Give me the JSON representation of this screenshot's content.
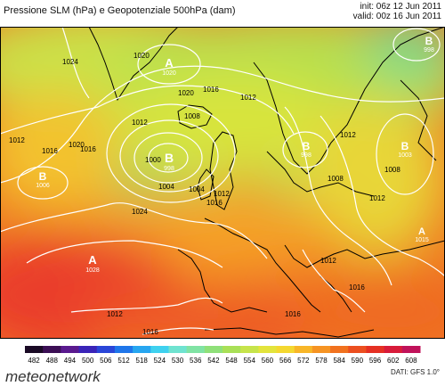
{
  "header": {
    "title": "Pressione SLM (hPa) e Geopotenziale 500hPa (dam)",
    "init": "init: 06z 12 Jun 2011",
    "valid": "valid: 00z 16 Jun 2011"
  },
  "map": {
    "pressure_centers": [
      {
        "letter": "A",
        "value": "1020"
      },
      {
        "letter": "B",
        "value": "998"
      },
      {
        "letter": "B",
        "value": "1006"
      },
      {
        "letter": "A",
        "value": "1028"
      },
      {
        "letter": "B",
        "value": "998"
      },
      {
        "letter": "B",
        "value": "1003"
      },
      {
        "letter": "A",
        "value": "1015"
      },
      {
        "letter": "B",
        "value": "998"
      }
    ],
    "isobar_labels": [
      "1020",
      "1024",
      "1020",
      "1016",
      "1012",
      "1008",
      "1004",
      "1000",
      "1012",
      "1016",
      "1020",
      "1024",
      "1012",
      "1016",
      "1008",
      "1004",
      "1012",
      "1016",
      "1012",
      "1012",
      "1008",
      "1012",
      "1016",
      "1016",
      "1012",
      "1016"
    ]
  },
  "scale": {
    "values": [
      "482",
      "488",
      "494",
      "500",
      "506",
      "512",
      "518",
      "524",
      "530",
      "536",
      "542",
      "548",
      "554",
      "560",
      "566",
      "572",
      "578",
      "584",
      "590",
      "596",
      "602",
      "608"
    ],
    "colors": [
      "#1a0a25",
      "#3c0f55",
      "#5a1a8f",
      "#3a24b8",
      "#2a46d8",
      "#1f76ea",
      "#27a6f0",
      "#3fd1ef",
      "#6fe3d0",
      "#80e3a4",
      "#8fe079",
      "#a9e057",
      "#c6e44b",
      "#e3e43c",
      "#f4d830",
      "#f8b628",
      "#f69423",
      "#f1721f",
      "#ec4f20",
      "#e53023",
      "#d81b3a",
      "#c0125a"
    ]
  },
  "footer": {
    "brand": "meteonetwork",
    "dati": "DATI: GFS 1.0°"
  },
  "colors": {
    "background": "#ffffff",
    "isobar": "#ffffff",
    "coast": "#000000"
  }
}
